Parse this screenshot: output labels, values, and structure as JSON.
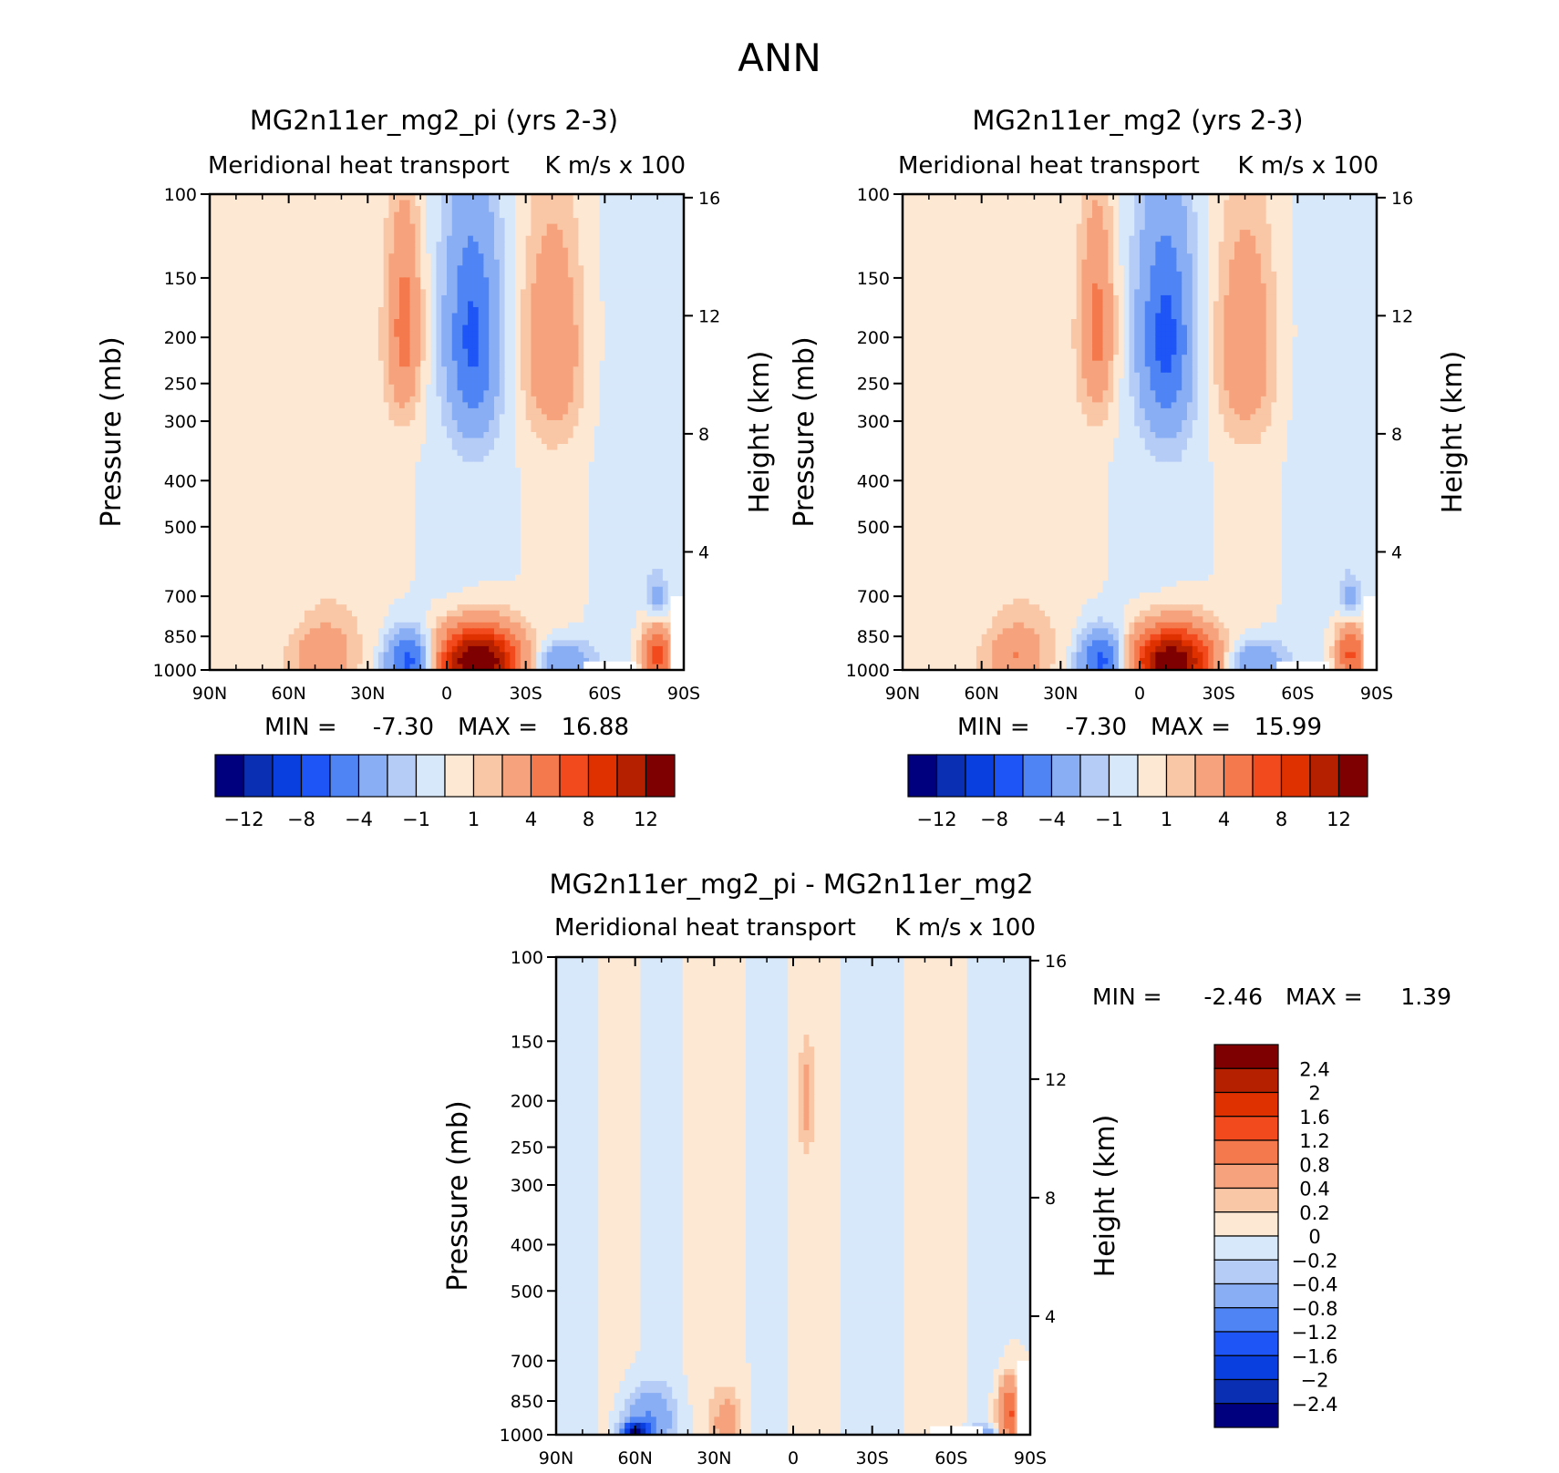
{
  "figure": {
    "title": "ANN"
  },
  "colors": {
    "main": [
      "#00007f",
      "#0a2fb2",
      "#0a3fdf",
      "#1e55f7",
      "#4f84f5",
      "#8aaef4",
      "#b5ccf7",
      "#d8e8fb",
      "#fde8d4",
      "#f9c6a6",
      "#f6a27c",
      "#f47a4d",
      "#f24a1d",
      "#df3000",
      "#b52000",
      "#7f0000"
    ],
    "diff": [
      "#00007f",
      "#0a2fb2",
      "#0a3fdf",
      "#1e55f7",
      "#4f84f5",
      "#8aaef4",
      "#b5ccf7",
      "#d8e8fb",
      "#fde8d4",
      "#f9c6a6",
      "#f6a27c",
      "#f47a4d",
      "#f24a1d",
      "#df3000",
      "#b52000",
      "#7f0000"
    ]
  },
  "chart_data": [
    {
      "type": "heatmap",
      "id": "p1",
      "title": "MG2n11er_mg2_pi (yrs 2-3)",
      "left_label": "Meridional heat transport",
      "right_label": "K m/s x 100",
      "ylabel": "Pressure (mb)",
      "ylabel2": "Height (km)",
      "x_ticks": [
        "90N",
        "60N",
        "30N",
        "0",
        "30S",
        "60S",
        "90S"
      ],
      "x_range": [
        90,
        -90
      ],
      "y_range": [
        1000,
        100
      ],
      "y_ticks": [
        100,
        150,
        200,
        250,
        300,
        400,
        500,
        700,
        850,
        1000
      ],
      "height_ticks": [
        16,
        12,
        8,
        4
      ],
      "stats": {
        "min_label": "MIN =",
        "min": "-7.30",
        "max_label": "MAX =",
        "max": "16.88"
      },
      "cbar_labels": [
        "-12",
        "-8",
        "-4",
        "-1",
        "1",
        "4",
        "8",
        "12"
      ],
      "levels": [
        -14,
        -12,
        -10,
        -8,
        -6,
        -4,
        -2,
        -1,
        0,
        1,
        2,
        4,
        6,
        8,
        10,
        12,
        14
      ],
      "features": [
        {
          "lat": -12,
          "p": 960,
          "amp": 15.5,
          "slat": 11,
          "sp": 110
        },
        {
          "lat": 14,
          "p": 960,
          "amp": -7.3,
          "slat": 6.5,
          "sp": 95
        },
        {
          "lat": -44,
          "p": 965,
          "amp": -4.2,
          "slat": 8,
          "sp": 70
        },
        {
          "lat": 47,
          "p": 930,
          "amp": 3.5,
          "slat": 7,
          "sp": 90
        },
        {
          "lat": 16,
          "p": 190,
          "amp": 4.8,
          "slat": 4.5,
          "sp": 65
        },
        {
          "lat": -10,
          "p": 200,
          "amp": -6.0,
          "slat": 7,
          "sp": 75
        },
        {
          "lat": -40,
          "p": 210,
          "amp": 3.6,
          "slat": 8,
          "sp": 75
        },
        {
          "lat": -80,
          "p": 930,
          "amp": 7.0,
          "slat": 4,
          "sp": 110
        },
        {
          "lat": -80,
          "p": 720,
          "amp": -3.0,
          "slat": 3,
          "sp": 60
        }
      ],
      "bands": [
        {
          "lat": 64,
          "w": 20,
          "amp": 0.7
        },
        {
          "lat": 32,
          "w": 14,
          "amp": 0.6
        },
        {
          "lat": -8,
          "w": 16,
          "amp": -0.6
        },
        {
          "lat": -40,
          "w": 10,
          "amp": 0.5
        },
        {
          "lat": -72,
          "w": 14,
          "amp": -0.5
        }
      ]
    },
    {
      "type": "heatmap",
      "id": "p2",
      "title": "MG2n11er_mg2 (yrs 2-3)",
      "left_label": "Meridional heat transport",
      "right_label": "K m/s x 100",
      "ylabel": "Pressure (mb)",
      "ylabel2": "Height (km)",
      "x_ticks": [
        "90N",
        "60N",
        "30N",
        "0",
        "30S",
        "60S",
        "90S"
      ],
      "x_range": [
        90,
        -90
      ],
      "y_range": [
        1000,
        100
      ],
      "y_ticks": [
        100,
        150,
        200,
        250,
        300,
        400,
        500,
        700,
        850,
        1000
      ],
      "height_ticks": [
        16,
        12,
        8,
        4
      ],
      "stats": {
        "min_label": "MIN =",
        "min": "-7.30",
        "max_label": "MAX =",
        "max": "15.99"
      },
      "cbar_labels": [
        "-12",
        "-8",
        "-4",
        "-1",
        "1",
        "4",
        "8",
        "12"
      ],
      "levels": [
        -14,
        -12,
        -10,
        -8,
        -6,
        -4,
        -2,
        -1,
        0,
        1,
        2,
        4,
        6,
        8,
        10,
        12,
        14
      ],
      "features": [
        {
          "lat": -12,
          "p": 960,
          "amp": 14.6,
          "slat": 11,
          "sp": 110
        },
        {
          "lat": 14,
          "p": 960,
          "amp": -7.3,
          "slat": 6.5,
          "sp": 95
        },
        {
          "lat": -44,
          "p": 965,
          "amp": -4.2,
          "slat": 8,
          "sp": 70
        },
        {
          "lat": 47,
          "p": 930,
          "amp": 3.6,
          "slat": 7,
          "sp": 90
        },
        {
          "lat": 16,
          "p": 190,
          "amp": 4.6,
          "slat": 4.5,
          "sp": 65
        },
        {
          "lat": -10,
          "p": 200,
          "amp": -6.2,
          "slat": 7,
          "sp": 75
        },
        {
          "lat": -40,
          "p": 210,
          "amp": 3.4,
          "slat": 8,
          "sp": 75
        },
        {
          "lat": -80,
          "p": 930,
          "amp": 6.5,
          "slat": 4,
          "sp": 110
        },
        {
          "lat": -80,
          "p": 720,
          "amp": -2.8,
          "slat": 3,
          "sp": 60
        }
      ],
      "bands": [
        {
          "lat": 64,
          "w": 20,
          "amp": 0.7
        },
        {
          "lat": 32,
          "w": 14,
          "amp": 0.6
        },
        {
          "lat": -8,
          "w": 16,
          "amp": -0.6
        },
        {
          "lat": -40,
          "w": 10,
          "amp": 0.5
        },
        {
          "lat": -72,
          "w": 14,
          "amp": -0.5
        }
      ]
    },
    {
      "type": "heatmap",
      "id": "p3",
      "title": "MG2n11er_mg2_pi - MG2n11er_mg2",
      "left_label": "Meridional heat transport",
      "right_label": "K m/s x 100",
      "ylabel": "Pressure (mb)",
      "ylabel2": "Height (km)",
      "x_ticks": [
        "90N",
        "60N",
        "30N",
        "0",
        "30S",
        "60S",
        "90S"
      ],
      "x_range": [
        90,
        -90
      ],
      "y_range": [
        1000,
        100
      ],
      "y_ticks": [
        100,
        150,
        200,
        250,
        300,
        400,
        500,
        700,
        850,
        1000
      ],
      "height_ticks": [
        16,
        12,
        8,
        4
      ],
      "stats": {
        "min_label": "MIN =",
        "min": "-2.46",
        "max_label": "MAX =",
        "max": "1.39"
      },
      "cbar_labels": [
        "2.4",
        "2",
        "1.6",
        "1.2",
        "0.8",
        "0.4",
        "0.2",
        "0",
        "-0.2",
        "-0.4",
        "-0.8",
        "-1.2",
        "-1.6",
        "-2",
        "-2.4"
      ],
      "levels": [
        -2.8,
        -2.4,
        -2,
        -1.6,
        -1.2,
        -0.8,
        -0.4,
        -0.2,
        0,
        0.2,
        0.4,
        0.8,
        1.2,
        1.6,
        2,
        2.4,
        2.8
      ],
      "features": [
        {
          "lat": 60,
          "p": 985,
          "amp": -2.2,
          "slat": 3.5,
          "sp": 30
        },
        {
          "lat": 55,
          "p": 930,
          "amp": -0.8,
          "slat": 7,
          "sp": 90
        },
        {
          "lat": 25,
          "p": 940,
          "amp": 0.5,
          "slat": 4,
          "sp": 90
        },
        {
          "lat": -82,
          "p": 900,
          "amp": 1.3,
          "slat": 3,
          "sp": 100
        },
        {
          "lat": -70,
          "p": 990,
          "amp": -0.9,
          "slat": 4,
          "sp": 20
        },
        {
          "lat": -5,
          "p": 200,
          "amp": 0.5,
          "slat": 2,
          "sp": 35
        }
      ],
      "bands": [
        {
          "lat": 80,
          "w": 5,
          "amp": -0.15
        },
        {
          "lat": 68,
          "w": 9,
          "amp": 0.12
        },
        {
          "lat": 50,
          "w": 8,
          "amp": -0.12
        },
        {
          "lat": 30,
          "w": 12,
          "amp": 0.12
        },
        {
          "lat": 12,
          "w": 6,
          "amp": -0.1
        },
        {
          "lat": -10,
          "w": 8,
          "amp": 0.08
        },
        {
          "lat": -30,
          "w": 9,
          "amp": -0.1
        },
        {
          "lat": -55,
          "w": 8,
          "amp": 0.12
        },
        {
          "lat": -75,
          "w": 6,
          "amp": -0.1
        }
      ]
    }
  ]
}
